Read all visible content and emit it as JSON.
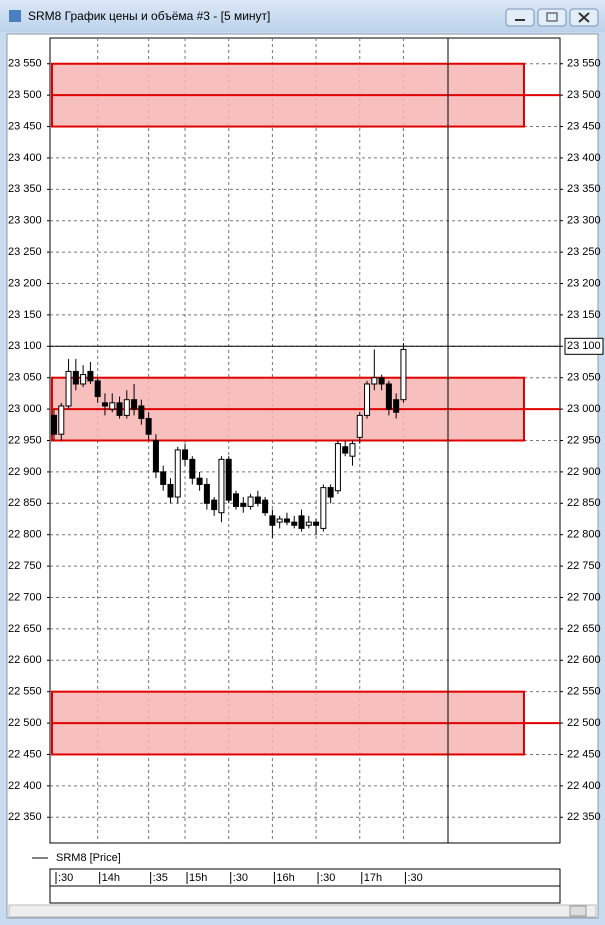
{
  "window": {
    "title": "SRM8 График цены и объёма #3 - [5 минут]"
  },
  "chart_data": {
    "type": "candlestick",
    "legend": "SRM8 [Price]",
    "categories": [
      ":30",
      null,
      null,
      null,
      null,
      null,
      "14h",
      null,
      null,
      null,
      null,
      null,
      null,
      ":35",
      null,
      null,
      null,
      null,
      "15h",
      null,
      null,
      null,
      null,
      null,
      ":30",
      null,
      null,
      null,
      null,
      null,
      "16h",
      null,
      null,
      null,
      null,
      null,
      ":30",
      null,
      null,
      null,
      null,
      null,
      "17h",
      null,
      null,
      null,
      null,
      null,
      ":30"
    ],
    "open": [
      22990,
      22960,
      23005,
      23060,
      23040,
      23060,
      23045,
      23010,
      23000,
      23010,
      22990,
      23015,
      23005,
      22985,
      22950,
      22900,
      22880,
      22860,
      22935,
      22920,
      22890,
      22880,
      22855,
      22835,
      22920,
      22865,
      22850,
      22845,
      22860,
      22855,
      22830,
      22820,
      22825,
      22820,
      22830,
      22815,
      22820,
      22810,
      22875,
      22870,
      22940,
      22925,
      22955,
      22990,
      23040,
      23050,
      23040,
      23015,
      23015
    ],
    "high": [
      23000,
      23010,
      23080,
      23080,
      23070,
      23075,
      23050,
      23025,
      23025,
      23020,
      23030,
      23040,
      23015,
      22995,
      22960,
      22910,
      22890,
      22940,
      22945,
      22925,
      22900,
      22890,
      22860,
      22925,
      22925,
      22870,
      22860,
      22865,
      22870,
      22860,
      22840,
      22830,
      22835,
      22830,
      22840,
      22830,
      22825,
      22880,
      22880,
      22950,
      22950,
      22950,
      22995,
      23045,
      23095,
      23055,
      23045,
      23025,
      23105
    ],
    "low": [
      22950,
      22950,
      23000,
      23030,
      23035,
      23040,
      23010,
      22990,
      22995,
      22985,
      22985,
      22990,
      22975,
      22950,
      22890,
      22870,
      22850,
      22850,
      22910,
      22880,
      22870,
      22840,
      22830,
      22820,
      22850,
      22840,
      22835,
      22840,
      22845,
      22830,
      22795,
      22810,
      22815,
      22810,
      22805,
      22810,
      22800,
      22805,
      22850,
      22865,
      22925,
      22910,
      22945,
      22985,
      23030,
      23030,
      22990,
      22985,
      23010
    ],
    "close": [
      22960,
      23005,
      23060,
      23040,
      23055,
      23045,
      23020,
      23005,
      23010,
      22990,
      23015,
      23000,
      22985,
      22960,
      22900,
      22880,
      22860,
      22935,
      22920,
      22890,
      22880,
      22850,
      22840,
      22920,
      22855,
      22845,
      22845,
      22860,
      22850,
      22835,
      22815,
      22825,
      22820,
      22815,
      22810,
      22820,
      22815,
      22875,
      22860,
      22945,
      22930,
      22945,
      22990,
      23040,
      23050,
      23040,
      23000,
      22995,
      23095
    ],
    "color_up": "#ffffff",
    "color_down": "#000000",
    "zones": [
      {
        "low": 23450,
        "high": 23550,
        "mid": 23500
      },
      {
        "low": 22950,
        "high": 23050,
        "mid": 23000
      },
      {
        "low": 22450,
        "high": 22550,
        "mid": 22500
      }
    ],
    "zone_color": "#f7b4b4",
    "zone_line_color": "#e00000",
    "crosshair": {
      "value": 23100,
      "label": "23 100"
    },
    "ylim": [
      22309,
      23591
    ],
    "yticks": [
      {
        "value": 23550,
        "label": "23 550"
      },
      {
        "value": 23500,
        "label": "23 500"
      },
      {
        "value": 23450,
        "label": "23 450"
      },
      {
        "value": 23400,
        "label": "23 400"
      },
      {
        "value": 23350,
        "label": "23 350"
      },
      {
        "value": 23300,
        "label": "23 300"
      },
      {
        "value": 23250,
        "label": "23 250"
      },
      {
        "value": 23200,
        "label": "23 200"
      },
      {
        "value": 23150,
        "label": "23 150"
      },
      {
        "value": 23100,
        "label": "23 100"
      },
      {
        "value": 23050,
        "label": "23 050"
      },
      {
        "value": 23000,
        "label": "23 000"
      },
      {
        "value": 22950,
        "label": "22 950"
      },
      {
        "value": 22900,
        "label": "22 900"
      },
      {
        "value": 22850,
        "label": "22 850"
      },
      {
        "value": 22800,
        "label": "22 800"
      },
      {
        "value": 22750,
        "label": "22 750"
      },
      {
        "value": 22700,
        "label": "22 700"
      },
      {
        "value": 22650,
        "label": "22 650"
      },
      {
        "value": 22600,
        "label": "22 600"
      },
      {
        "value": 22550,
        "label": "22 550"
      },
      {
        "value": 22500,
        "label": "22 500"
      },
      {
        "value": 22450,
        "label": "22 450"
      },
      {
        "value": 22400,
        "label": "22 400"
      },
      {
        "value": 22350,
        "label": "22 350"
      }
    ],
    "grid": true
  }
}
